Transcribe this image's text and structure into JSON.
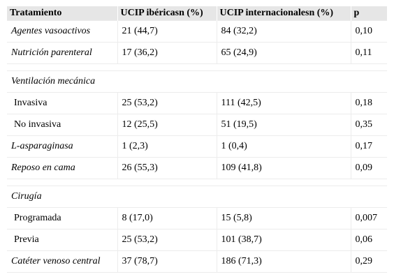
{
  "table": {
    "header": [
      "Tratamiento",
      "UCIP ibéricasn (%)",
      "UCIP internacionalesn (%)",
      "p"
    ],
    "rows": [
      [
        "Agentes vasoactivos",
        "21 (44,7)",
        "84 (32,2)",
        "0,10"
      ],
      [
        "Nutrición parenteral",
        "17 (36,2)",
        "65 (24,9)",
        "0,11"
      ],
      [
        "Ventilación mecánica"
      ],
      [
        "Invasiva",
        "25 (53,2)",
        "111 (42,5)",
        "0,18"
      ],
      [
        "No invasiva",
        "12 (25,5)",
        "51 (19,5)",
        "0,35"
      ],
      [
        "L-asparaginasa",
        "1 (2,3)",
        "1 (0,4)",
        "0,17"
      ],
      [
        "Reposo en cama",
        "26 (55,3)",
        "109 (41,8)",
        "0,09"
      ],
      [
        "Cirugía"
      ],
      [
        "Programada",
        "8 (17,0)",
        "15 (5,8)",
        "0,007"
      ],
      [
        "Previa",
        "25 (53,2)",
        "101 (38,7)",
        "0,06"
      ],
      [
        "Catéter venoso central",
        "37 (78,7)",
        "186 (71,3)",
        "0,29"
      ]
    ]
  }
}
